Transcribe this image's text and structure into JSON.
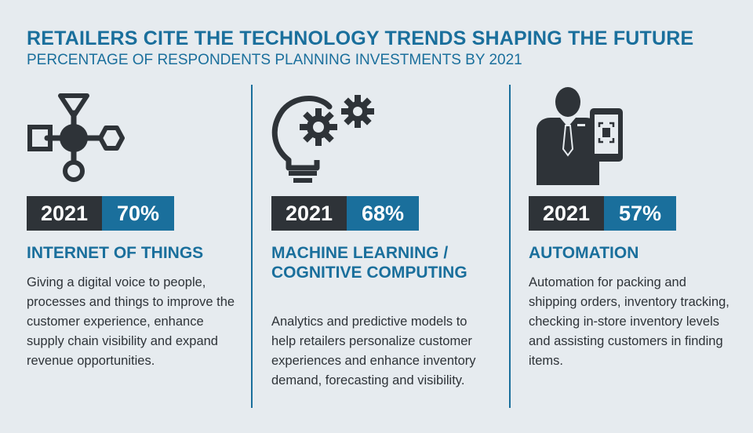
{
  "header": {
    "title": "RETAILERS CITE THE TECHNOLOGY TRENDS SHAPING THE FUTURE",
    "subtitle": "PERCENTAGE OF RESPONDENTS PLANNING INVESTMENTS BY 2021"
  },
  "colors": {
    "accent": "#1a6f9c",
    "dark": "#2e3338",
    "background": "#e6ebef"
  },
  "trends": [
    {
      "icon": "iot-network-icon",
      "year": "2021",
      "percent": "70%",
      "title": "INTERNET OF THINGS",
      "description": "Giving a digital voice to people, processes and things to improve the customer experience, enhance supply chain visibility and expand revenue opportunities."
    },
    {
      "icon": "lightbulb-gears-icon",
      "year": "2021",
      "percent": "68%",
      "title": "MACHINE LEARNING / COGNITIVE COMPUTING",
      "description": "Analytics and predictive models to help retailers personalize customer experiences and enhance inventory demand, forecasting and visibility."
    },
    {
      "icon": "businessman-scanner-icon",
      "year": "2021",
      "percent": "57%",
      "title": "AUTOMATION",
      "description": "Automation for packing and shipping orders, inventory tracking, checking in-store inventory levels and assisting customers in finding items."
    }
  ]
}
